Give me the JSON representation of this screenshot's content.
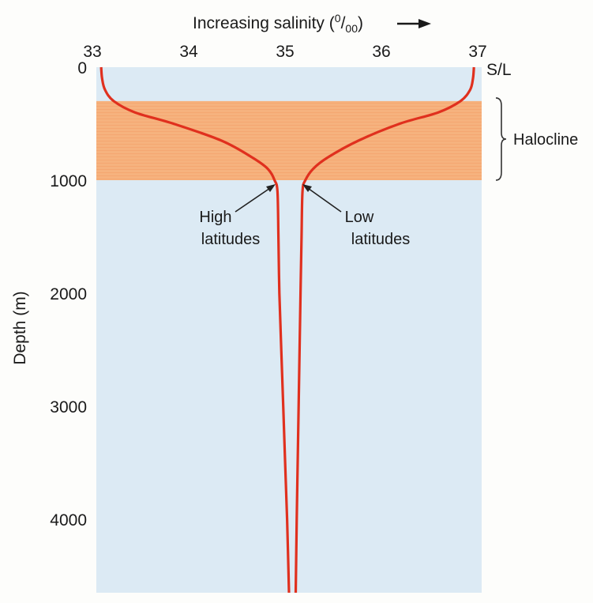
{
  "chart_data": {
    "type": "line",
    "title": "",
    "xlabel": "Increasing salinity (⁰/₀₀)",
    "xlabel_main": "Increasing salinity (",
    "xlabel_unit_num": "0",
    "xlabel_unit_den": "00",
    "xlabel_close": ")",
    "xlabel_arrow": "→",
    "x_unit_label": "S/L",
    "ylabel": "Depth (m)",
    "xlim": [
      33,
      37
    ],
    "ylim": [
      0,
      4650
    ],
    "y_inverted": true,
    "x_axis_position": "top",
    "x_ticks": [
      "33",
      "34",
      "35",
      "36",
      "37"
    ],
    "y_ticks": [
      "0",
      "1000",
      "2000",
      "3000",
      "4000"
    ],
    "grid": false,
    "band": {
      "label": "Halocline",
      "y_from": 300,
      "y_to": 1000,
      "color": "#f6b27e"
    },
    "background_color": "#dceaf4",
    "series": [
      {
        "name": "High latitudes",
        "label_line1": "High",
        "label_line2": "latitudes",
        "color": "#e0301e",
        "points": [
          [
            33.05,
            0
          ],
          [
            33.06,
            100
          ],
          [
            33.09,
            200
          ],
          [
            33.18,
            300
          ],
          [
            33.4,
            400
          ],
          [
            33.8,
            500
          ],
          [
            34.3,
            650
          ],
          [
            34.62,
            800
          ],
          [
            34.78,
            900
          ],
          [
            34.85,
            1000
          ],
          [
            34.88,
            1100
          ],
          [
            34.89,
            1500
          ],
          [
            34.9,
            2000
          ],
          [
            34.92,
            2500
          ],
          [
            34.94,
            3000
          ],
          [
            34.96,
            3500
          ],
          [
            34.98,
            4000
          ],
          [
            35.0,
            4650
          ]
        ]
      },
      {
        "name": "Low latitudes",
        "label_line1": "Low",
        "label_line2": "latitudes",
        "color": "#e0301e",
        "points": [
          [
            36.92,
            0
          ],
          [
            36.91,
            100
          ],
          [
            36.88,
            200
          ],
          [
            36.78,
            300
          ],
          [
            36.55,
            400
          ],
          [
            36.15,
            500
          ],
          [
            35.72,
            650
          ],
          [
            35.4,
            800
          ],
          [
            35.25,
            900
          ],
          [
            35.17,
            1000
          ],
          [
            35.14,
            1100
          ],
          [
            35.13,
            1500
          ],
          [
            35.12,
            2000
          ],
          [
            35.11,
            2500
          ],
          [
            35.1,
            3000
          ],
          [
            35.09,
            3500
          ],
          [
            35.08,
            4000
          ],
          [
            35.07,
            4650
          ]
        ]
      }
    ],
    "annotations": [
      {
        "series": "High latitudes",
        "at": [
          34.88,
          1100
        ]
      },
      {
        "series": "Low latitudes",
        "at": [
          35.14,
          1100
        ]
      }
    ]
  }
}
